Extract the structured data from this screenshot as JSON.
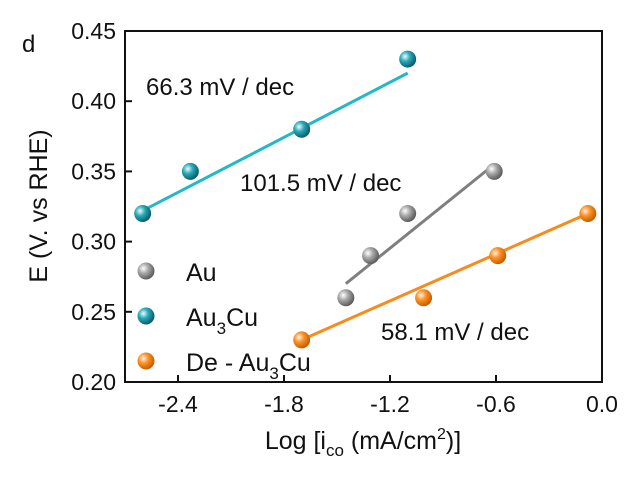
{
  "panel_label": "d",
  "chart_data": {
    "type": "scatter",
    "xlabel_prefix": "Log [i",
    "xlabel_sub": "co",
    "xlabel_mid": " (mA/cm",
    "xlabel_sup": "2",
    "xlabel_suffix": ")]",
    "ylabel": "E (V. vs RHE)",
    "xlim": [
      -2.7,
      0.0
    ],
    "ylim": [
      0.2,
      0.45
    ],
    "xticks": [
      -2.4,
      -1.8,
      -1.2,
      -0.6,
      0.0
    ],
    "xtick_labels": [
      "-2.4",
      "-1.8",
      "-1.2",
      "-0.6",
      "0.0"
    ],
    "yticks": [
      0.2,
      0.25,
      0.3,
      0.35,
      0.4,
      0.45
    ],
    "ytick_labels": [
      "0.20",
      "0.25",
      "0.30",
      "0.35",
      "0.40",
      "0.45"
    ],
    "legend_position": "lower-left",
    "series": [
      {
        "name": "Au",
        "name_parts": [
          {
            "t": "Au",
            "sub": false
          }
        ],
        "color": "#8c8c8c",
        "line_color": "#7f7f7f",
        "x": [
          -1.45,
          -1.31,
          -1.1,
          -0.61
        ],
        "y": [
          0.26,
          0.29,
          0.32,
          0.35
        ],
        "fit": {
          "x": [
            -1.45,
            -0.61
          ],
          "y": [
            0.27,
            0.355
          ]
        },
        "slope_label": "101.5 mV / dec"
      },
      {
        "name": "Au3Cu",
        "name_parts": [
          {
            "t": "Au",
            "sub": false
          },
          {
            "t": "3",
            "sub": true
          },
          {
            "t": "Cu",
            "sub": false
          }
        ],
        "color": "#1e96a6",
        "line_color": "#22b8c6",
        "x": [
          -2.6,
          -2.33,
          -1.7,
          -1.1
        ],
        "y": [
          0.32,
          0.35,
          0.38,
          0.43
        ],
        "fit": {
          "x": [
            -2.6,
            -1.1
          ],
          "y": [
            0.322,
            0.42
          ]
        },
        "slope_label": "66.3 mV / dec"
      },
      {
        "name": "De - Au3Cu",
        "name_parts": [
          {
            "t": "De - Au",
            "sub": false
          },
          {
            "t": "3",
            "sub": true
          },
          {
            "t": "Cu",
            "sub": false
          }
        ],
        "color": "#f98a1c",
        "line_color": "#f98a1c",
        "x": [
          -1.7,
          -1.01,
          -0.59,
          -0.08
        ],
        "y": [
          0.23,
          0.26,
          0.29,
          0.32
        ],
        "fit": {
          "x": [
            -1.7,
            -0.08
          ],
          "y": [
            0.23,
            0.32
          ]
        },
        "slope_label": "58.1 mV / dec"
      }
    ]
  }
}
